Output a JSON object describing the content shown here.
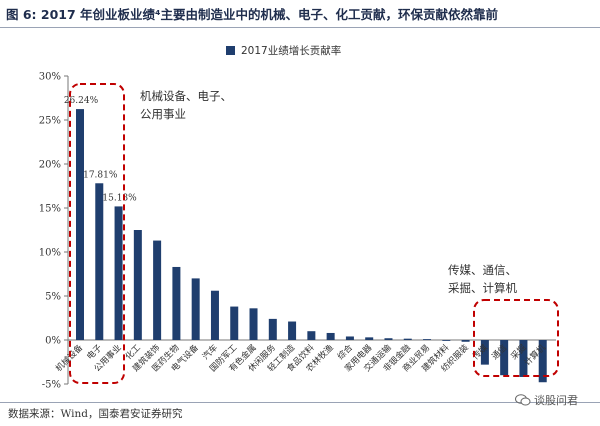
{
  "page": {
    "title": "图 6: 2017 年创业板业绩⁴主要由制造业中的机械、电子、化工贡献，环保贡献依然靠前",
    "source": "数据来源：Wind，国泰君安证券研究",
    "watermark": "谈股问君"
  },
  "chart_data": {
    "type": "bar",
    "title": "",
    "xlabel": "",
    "ylabel": "",
    "ylim": [
      -5,
      30
    ],
    "yticks": [
      -5,
      0,
      5,
      10,
      15,
      20,
      25,
      30
    ],
    "ytick_labels": [
      "-5%",
      "0%",
      "5%",
      "10%",
      "15%",
      "20%",
      "25%",
      "30%"
    ],
    "grid": false,
    "legend_position": "top-center",
    "bar_color": "#1f3e6e",
    "categories": [
      "机械设备",
      "电子",
      "公用事业",
      "化工",
      "建筑装饰",
      "医药生物",
      "电气设备",
      "汽车",
      "国防军工",
      "有色金属",
      "休闲服务",
      "轻工制造",
      "食品饮料",
      "农林牧渔",
      "综合",
      "家用电器",
      "交通运输",
      "非银金融",
      "商业贸易",
      "建筑材料",
      "纺织服装",
      "传媒",
      "通信",
      "采掘",
      "计算机"
    ],
    "series": [
      {
        "name": "2017业绩增长贡献率",
        "values": [
          26.24,
          17.81,
          15.18,
          12.5,
          11.3,
          8.3,
          7.0,
          5.6,
          3.8,
          3.6,
          2.4,
          2.1,
          1.0,
          0.8,
          0.4,
          0.3,
          0.2,
          0.15,
          0.1,
          -0.1,
          -0.2,
          -2.8,
          -4.0,
          -4.2,
          -4.8
        ]
      }
    ],
    "data_labels": [
      {
        "index": 0,
        "text": "26.24%"
      },
      {
        "index": 1,
        "text": "17.81%"
      },
      {
        "index": 2,
        "text": "15.18%"
      }
    ],
    "annotations": [
      {
        "text": "机械设备、电子、",
        "group": "left"
      },
      {
        "text": "公用事业",
        "group": "left"
      },
      {
        "text": "传媒、通信、",
        "group": "right"
      },
      {
        "text": "采掘、计算机",
        "group": "right"
      }
    ],
    "highlight_color": "#c00000"
  }
}
